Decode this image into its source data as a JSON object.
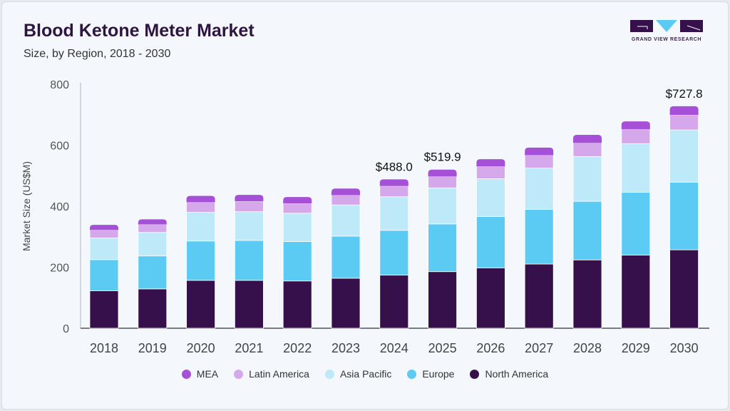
{
  "header": {
    "title": "Blood Ketone Meter Market",
    "subtitle": "Size, by Region, 2018 - 2030"
  },
  "logo": {
    "text": "GRAND VIEW RESEARCH"
  },
  "chart_data": {
    "type": "bar",
    "stacked": true,
    "title": "Blood Ketone Meter Market",
    "subtitle": "Size, by Region, 2018 - 2030",
    "xlabel": "",
    "ylabel": "Market Size (US$M)",
    "ylim": [
      0,
      800
    ],
    "yticks": [
      0,
      200,
      400,
      600,
      800
    ],
    "grid": false,
    "legend_position": "bottom",
    "categories": [
      "2018",
      "2019",
      "2020",
      "2021",
      "2022",
      "2023",
      "2024",
      "2025",
      "2026",
      "2027",
      "2028",
      "2029",
      "2030"
    ],
    "series": [
      {
        "name": "North America",
        "color": "#36104a",
        "values": [
          123,
          129,
          157,
          157,
          155,
          164,
          174,
          185.5,
          198,
          210.5,
          224,
          240,
          257
        ]
      },
      {
        "name": "Europe",
        "color": "#5ccbf4",
        "values": [
          102,
          108,
          129,
          131,
          129,
          138,
          147,
          156.5,
          168,
          179.5,
          192,
          206,
          222
        ]
      },
      {
        "name": "Asia Pacific",
        "color": "#bde9f9",
        "values": [
          71,
          77,
          94,
          94,
          93,
          102,
          110,
          118,
          124,
          135,
          147,
          159,
          171
        ]
      },
      {
        "name": "Latin America",
        "color": "#d4a8ea",
        "values": [
          26,
          26,
          33,
          34,
          32,
          32,
          35,
          37,
          40,
          42,
          44,
          47,
          49
        ]
      },
      {
        "name": "MEA",
        "color": "#a550d6",
        "values": [
          17,
          17,
          21,
          21,
          21,
          22,
          22,
          22.9,
          24,
          25,
          27,
          26,
          28.8
        ]
      }
    ],
    "annotations": [
      {
        "category": "2024",
        "text": "$488.0"
      },
      {
        "category": "2025",
        "text": "$519.9"
      },
      {
        "category": "2030",
        "text": "$727.8"
      }
    ],
    "legend_order": [
      "MEA",
      "Latin America",
      "Asia Pacific",
      "Europe",
      "North America"
    ]
  }
}
